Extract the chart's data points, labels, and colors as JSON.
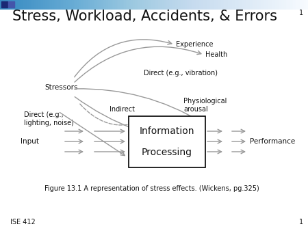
{
  "title": "Stress, Workload, Accidents, & Errors",
  "title_fontsize": 15,
  "title_color": "#111111",
  "bg_color": "#ffffff",
  "figure_caption": "Figure 13.1 A representation of stress effects. (Wickens, pg.325)",
  "slide_number": "1",
  "footer_left": "ISE 412",
  "box_label_line1": "Information",
  "box_label_line2": "Processing",
  "labels": {
    "stressors": "Stressors",
    "input": "Input",
    "performance": "Performance",
    "experience": "Experience",
    "health": "Health",
    "direct_vibration": "Direct (e.g., vibration)",
    "physiological": "Physiological\narousal",
    "indirect": "Indirect",
    "direct_lighting": "Direct (e.g.,\nlighting, noise)"
  },
  "arrow_color": "#999999",
  "box_color": "#000000",
  "text_color": "#111111"
}
